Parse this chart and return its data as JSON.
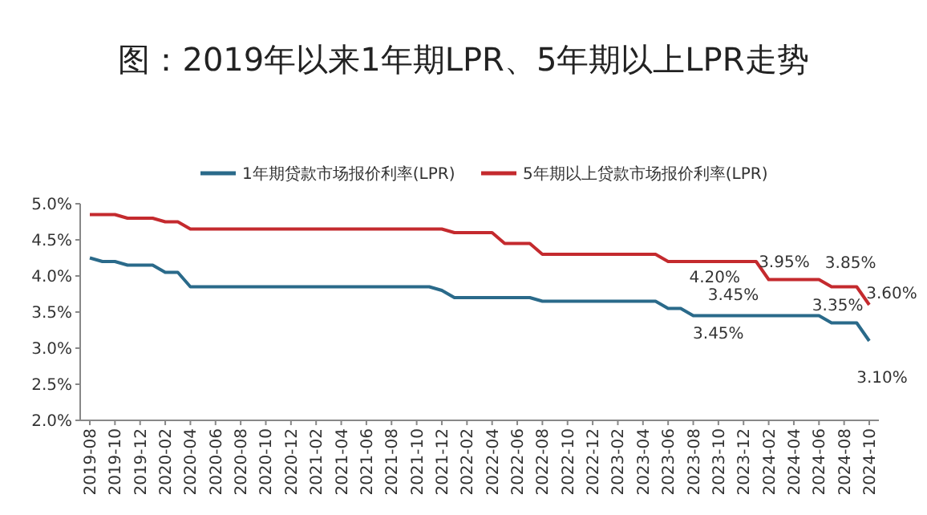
{
  "chart_data": {
    "type": "line",
    "title": "图：2019年以来1年期LPR、5年期以上LPR走势",
    "categories": [
      "2019-08",
      null,
      "2019-10",
      null,
      "2019-12",
      null,
      "2020-02",
      null,
      "2020-04",
      null,
      "2020-06",
      null,
      "2020-08",
      null,
      "2020-10",
      null,
      "2020-12",
      null,
      "2021-02",
      null,
      "2021-04",
      null,
      "2021-06",
      null,
      "2021-08",
      null,
      "2021-10",
      null,
      "2021-12",
      null,
      "2022-02",
      null,
      "2022-04",
      null,
      "2022-06",
      null,
      "2022-08",
      null,
      "2022-10",
      null,
      "2022-12",
      null,
      "2023-02",
      null,
      "2023-04",
      null,
      "2023-06",
      null,
      "2023-08",
      null,
      "2023-10",
      null,
      "2023-12",
      null,
      "2024-02",
      null,
      "2024-04",
      null,
      "2024-06",
      null,
      "2024-08",
      null,
      "2024-10"
    ],
    "series": [
      {
        "name": "1年期贷款市场报价利率(LPR)",
        "color": "#2a6a8a",
        "values": [
          4.25,
          4.2,
          4.2,
          4.15,
          4.15,
          4.15,
          4.05,
          4.05,
          3.85,
          3.85,
          3.85,
          3.85,
          3.85,
          3.85,
          3.85,
          3.85,
          3.85,
          3.85,
          3.85,
          3.85,
          3.85,
          3.85,
          3.85,
          3.85,
          3.85,
          3.85,
          3.85,
          3.85,
          3.8,
          3.7,
          3.7,
          3.7,
          3.7,
          3.7,
          3.7,
          3.7,
          3.65,
          3.65,
          3.65,
          3.65,
          3.65,
          3.65,
          3.65,
          3.65,
          3.65,
          3.65,
          3.55,
          3.55,
          3.45,
          3.45,
          3.45,
          3.45,
          3.45,
          3.45,
          3.45,
          3.45,
          3.45,
          3.45,
          3.45,
          3.35,
          3.35,
          3.35,
          3.1
        ]
      },
      {
        "name": "5年期以上贷款市场报价利率(LPR)",
        "color": "#c42a2e",
        "values": [
          4.85,
          4.85,
          4.85,
          4.8,
          4.8,
          4.8,
          4.75,
          4.75,
          4.65,
          4.65,
          4.65,
          4.65,
          4.65,
          4.65,
          4.65,
          4.65,
          4.65,
          4.65,
          4.65,
          4.65,
          4.65,
          4.65,
          4.65,
          4.65,
          4.65,
          4.65,
          4.65,
          4.65,
          4.65,
          4.6,
          4.6,
          4.6,
          4.6,
          4.45,
          4.45,
          4.45,
          4.3,
          4.3,
          4.3,
          4.3,
          4.3,
          4.3,
          4.3,
          4.3,
          4.3,
          4.3,
          4.2,
          4.2,
          4.2,
          4.2,
          4.2,
          4.2,
          4.2,
          4.2,
          3.95,
          3.95,
          3.95,
          3.95,
          3.95,
          3.85,
          3.85,
          3.85,
          3.6
        ]
      }
    ],
    "ylim": [
      2.0,
      5.0
    ],
    "yticks": [
      {
        "value": 2.0,
        "label": "2.0%"
      },
      {
        "value": 2.5,
        "label": "2.5%"
      },
      {
        "value": 3.0,
        "label": "3.0%"
      },
      {
        "value": 3.5,
        "label": "3.5%"
      },
      {
        "value": 4.0,
        "label": "4.0%"
      },
      {
        "value": 4.5,
        "label": "4.5%"
      },
      {
        "value": 5.0,
        "label": "5.0%"
      }
    ],
    "legend": "top",
    "grid": false,
    "marker": "none",
    "line_style": "solid",
    "annotations": [
      {
        "text": "3.45%",
        "x": "2023-10",
        "y": 3.45
      },
      {
        "text": "4.20%",
        "x": "2023-12",
        "y": 4.2
      },
      {
        "text": "3.45%",
        "x": "2024-02",
        "y": 3.45
      },
      {
        "text": "3.95%",
        "x": "2024-04",
        "y": 3.95
      },
      {
        "text": "3.85%",
        "x": "2024-08",
        "y": 3.85
      },
      {
        "text": "3.60%",
        "x": "2024-10",
        "y": 3.6
      },
      {
        "text": "3.35%",
        "x": "2024-08",
        "y": 3.35
      },
      {
        "text": "3.10%",
        "x": "2024-10",
        "y": 3.1
      }
    ]
  }
}
